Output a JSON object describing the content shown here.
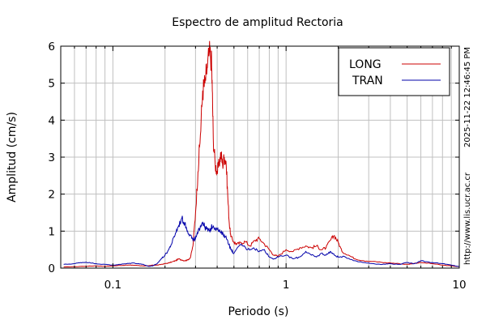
{
  "chart_data": {
    "type": "line",
    "title": "Espectro de amplitud Rectoria",
    "xlabel": "Periodo (s)",
    "ylabel": "Amplitud (cm/s)",
    "x_scale": "log",
    "xlim": [
      0.05,
      10
    ],
    "ylim": [
      0,
      6
    ],
    "x_ticks": [
      0.1,
      1,
      10
    ],
    "x_tick_labels": [
      "0.1",
      "1",
      "10"
    ],
    "y_ticks": [
      0,
      1,
      2,
      3,
      4,
      5,
      6
    ],
    "y_tick_labels": [
      "0",
      "1",
      "2",
      "3",
      "4",
      "5",
      "6"
    ],
    "grid": true,
    "legend_position": "top-right",
    "timestamp": "2025-11-22 12:46:45 PM",
    "url": "http://www.lis.ucr.ac.cr",
    "series": [
      {
        "name": "LONG",
        "color": "#cc0000",
        "x": [
          0.052,
          0.06,
          0.07,
          0.08,
          0.09,
          0.1,
          0.11,
          0.12,
          0.13,
          0.14,
          0.15,
          0.16,
          0.17,
          0.18,
          0.19,
          0.2,
          0.21,
          0.22,
          0.23,
          0.24,
          0.25,
          0.26,
          0.27,
          0.28,
          0.29,
          0.3,
          0.31,
          0.32,
          0.33,
          0.34,
          0.35,
          0.36,
          0.37,
          0.375,
          0.38,
          0.39,
          0.4,
          0.41,
          0.42,
          0.43,
          0.44,
          0.45,
          0.46,
          0.47,
          0.48,
          0.5,
          0.52,
          0.55,
          0.58,
          0.62,
          0.66,
          0.7,
          0.75,
          0.8,
          0.85,
          0.9,
          1.0,
          1.1,
          1.2,
          1.3,
          1.4,
          1.5,
          1.6,
          1.7,
          1.8,
          1.9,
          2.0,
          2.1,
          2.3,
          2.5,
          2.8,
          3.2,
          3.6,
          4.0,
          4.5,
          5.0,
          5.5,
          6.0,
          7.0,
          8.0,
          9.0,
          10.0
        ],
        "values": [
          0.03,
          0.04,
          0.05,
          0.06,
          0.05,
          0.06,
          0.07,
          0.08,
          0.08,
          0.07,
          0.06,
          0.06,
          0.08,
          0.08,
          0.1,
          0.12,
          0.14,
          0.17,
          0.2,
          0.25,
          0.22,
          0.2,
          0.22,
          0.28,
          0.6,
          1.5,
          2.6,
          3.6,
          4.8,
          5.0,
          5.4,
          5.8,
          5.7,
          4.8,
          3.5,
          2.8,
          2.6,
          2.8,
          3.1,
          2.8,
          3.0,
          2.9,
          2.0,
          1.2,
          0.85,
          0.7,
          0.65,
          0.68,
          0.72,
          0.6,
          0.75,
          0.8,
          0.65,
          0.5,
          0.35,
          0.32,
          0.5,
          0.45,
          0.55,
          0.6,
          0.55,
          0.6,
          0.5,
          0.55,
          0.75,
          0.88,
          0.7,
          0.45,
          0.35,
          0.25,
          0.2,
          0.18,
          0.15,
          0.14,
          0.12,
          0.1,
          0.13,
          0.15,
          0.12,
          0.08,
          0.06,
          0.04
        ]
      },
      {
        "name": "TRAN",
        "color": "#0000aa",
        "x": [
          0.052,
          0.06,
          0.065,
          0.07,
          0.08,
          0.09,
          0.1,
          0.11,
          0.12,
          0.13,
          0.14,
          0.15,
          0.16,
          0.17,
          0.18,
          0.19,
          0.2,
          0.21,
          0.22,
          0.23,
          0.24,
          0.25,
          0.26,
          0.27,
          0.28,
          0.29,
          0.3,
          0.31,
          0.32,
          0.33,
          0.34,
          0.35,
          0.36,
          0.37,
          0.38,
          0.4,
          0.42,
          0.44,
          0.46,
          0.48,
          0.5,
          0.55,
          0.6,
          0.65,
          0.7,
          0.75,
          0.8,
          0.85,
          0.9,
          1.0,
          1.1,
          1.2,
          1.3,
          1.4,
          1.5,
          1.6,
          1.7,
          1.8,
          1.9,
          2.0,
          2.2,
          2.5,
          2.8,
          3.2,
          3.6,
          4.0,
          4.5,
          5.0,
          5.5,
          6.0,
          7.0,
          8.0,
          9.0,
          10.0
        ],
        "values": [
          0.1,
          0.12,
          0.15,
          0.16,
          0.12,
          0.1,
          0.08,
          0.1,
          0.12,
          0.14,
          0.12,
          0.1,
          0.05,
          0.06,
          0.12,
          0.25,
          0.35,
          0.5,
          0.7,
          0.95,
          1.15,
          1.35,
          1.2,
          1.0,
          0.9,
          0.75,
          0.8,
          0.95,
          1.15,
          1.25,
          1.1,
          1.05,
          1.0,
          1.1,
          1.15,
          1.05,
          0.95,
          0.9,
          0.75,
          0.5,
          0.4,
          0.65,
          0.5,
          0.55,
          0.45,
          0.5,
          0.3,
          0.25,
          0.3,
          0.35,
          0.25,
          0.3,
          0.45,
          0.35,
          0.3,
          0.4,
          0.35,
          0.45,
          0.35,
          0.3,
          0.3,
          0.2,
          0.15,
          0.12,
          0.1,
          0.12,
          0.1,
          0.15,
          0.12,
          0.2,
          0.15,
          0.12,
          0.08,
          0.04
        ]
      }
    ]
  }
}
